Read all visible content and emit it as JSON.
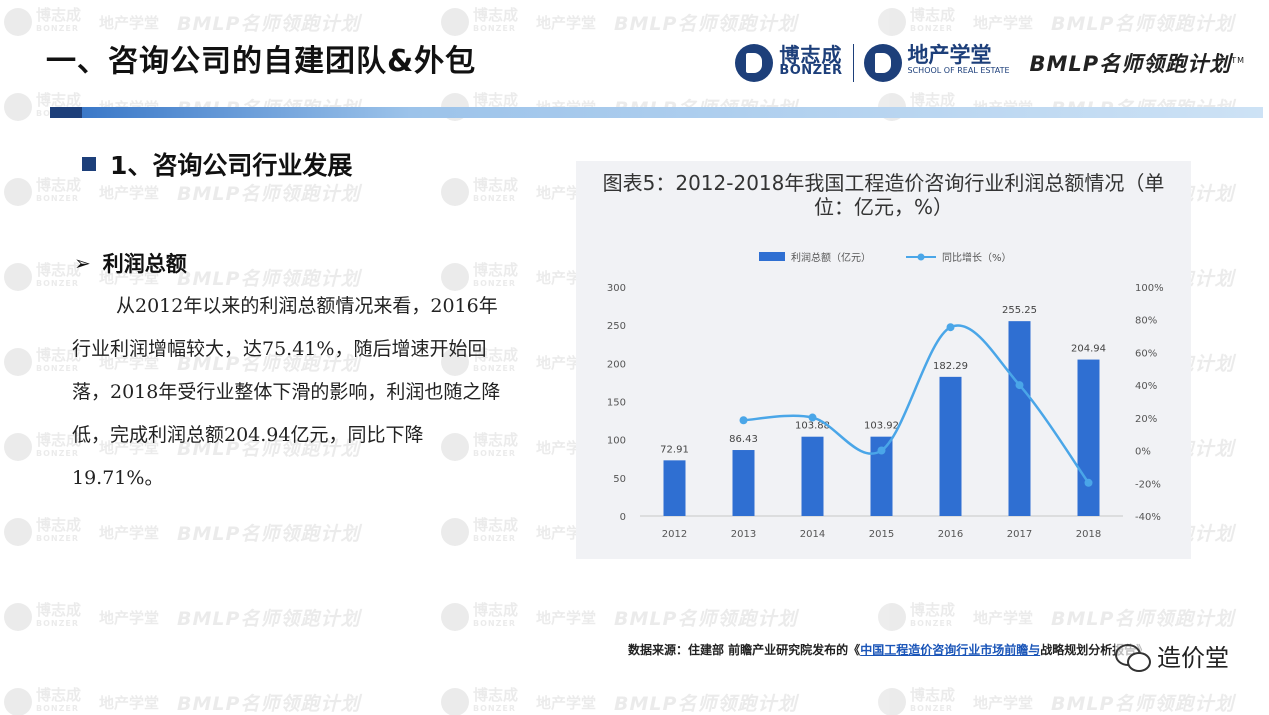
{
  "header": {
    "title": "一、咨询公司的自建团队&外包",
    "brand": {
      "bonzer_cn": "博志成",
      "bonzer_en": "BONZER",
      "school_cn": "地产学堂",
      "school_en": "SCHOOL OF REAL ESTATE",
      "bmlp": "BMLP名师领跑计划",
      "tm": "TM"
    }
  },
  "section": {
    "heading": "1、咨询公司行业发展",
    "sub_heading": "利润总额",
    "arrow": "➢",
    "paragraph": "从2012年以来的利润总额情况来看，2016年行业利润增幅较大，达75.41%，随后增速开始回落，2018年受行业整体下滑的影响，利润也随之降低，完成利润总额204.94亿元，同比下降19.71%。"
  },
  "watermark": {
    "a": "博志成",
    "a_sub": "BONZER",
    "b": "地产学堂",
    "c": "BMLP名师领跑计划"
  },
  "chart_data": {
    "type": "bar",
    "title": "图表5：2012-2018年我国工程造价咨询行业利润总额情况（单位：亿元，%）",
    "categories": [
      "2012",
      "2013",
      "2014",
      "2015",
      "2016",
      "2017",
      "2018"
    ],
    "series": [
      {
        "name": "利润总额（亿元）",
        "type": "bar",
        "axis": "left",
        "values": [
          72.91,
          86.43,
          103.88,
          103.92,
          182.29,
          255.25,
          204.94
        ],
        "data_labels": [
          "72.91",
          "86.43",
          "103.88",
          "103.92",
          "182.29",
          "255.25",
          "204.94"
        ]
      },
      {
        "name": "同比增长（%）",
        "type": "line",
        "axis": "right",
        "values": [
          null,
          18.54,
          20.19,
          0.04,
          75.41,
          40.03,
          -19.71
        ]
      }
    ],
    "y_left": {
      "min": 0,
      "max": 300,
      "ticks": [
        "0",
        "50",
        "100",
        "150",
        "200",
        "250",
        "300"
      ]
    },
    "y_right": {
      "min": -40,
      "max": 100,
      "ticks": [
        "-40%",
        "-20%",
        "0%",
        "20%",
        "40%",
        "60%",
        "80%",
        "100%"
      ]
    },
    "legend_position": "top",
    "grid": false,
    "colors": {
      "bar": "#2f6fd2",
      "line": "#4aa6e8"
    }
  },
  "source": {
    "prefix": "数据来源：住建部 前瞻产业研究院发布的《",
    "link": "中国工程造价咨询行业市场前瞻与",
    "suffix": "战略规划分析报告》"
  },
  "wechat": {
    "name": "造价堂"
  }
}
